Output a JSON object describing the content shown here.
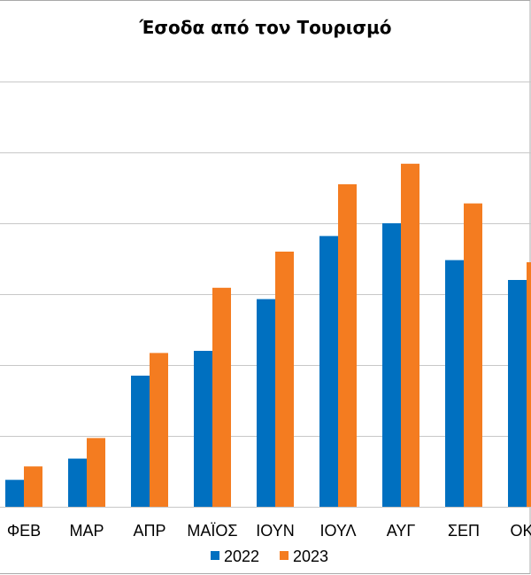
{
  "chart_data": {
    "type": "bar",
    "title": "Έσοδα από τον Τουρισμό",
    "xlabel": "",
    "ylabel": "",
    "categories": [
      "ΦΕΒ",
      "ΜΑΡ",
      "ΑΠΡ",
      "ΜΑΪΟΣ",
      "ΙΟΥΝ",
      "ΙΟΥΛ",
      "ΑΥΓ",
      "ΣΕΠ",
      "ΟΚΤ"
    ],
    "series": [
      {
        "name": "2022",
        "color": "#0070c0",
        "values": [
          0.38,
          0.68,
          1.85,
          2.2,
          2.93,
          3.82,
          4.0,
          3.48,
          3.2
        ]
      },
      {
        "name": "2023",
        "color": "#f47c20",
        "values": [
          0.57,
          0.97,
          2.17,
          3.09,
          3.6,
          4.55,
          4.84,
          4.28,
          3.45
        ]
      }
    ],
    "ylim": [
      0,
      6
    ],
    "grid": true,
    "legend_position": "bottom"
  }
}
